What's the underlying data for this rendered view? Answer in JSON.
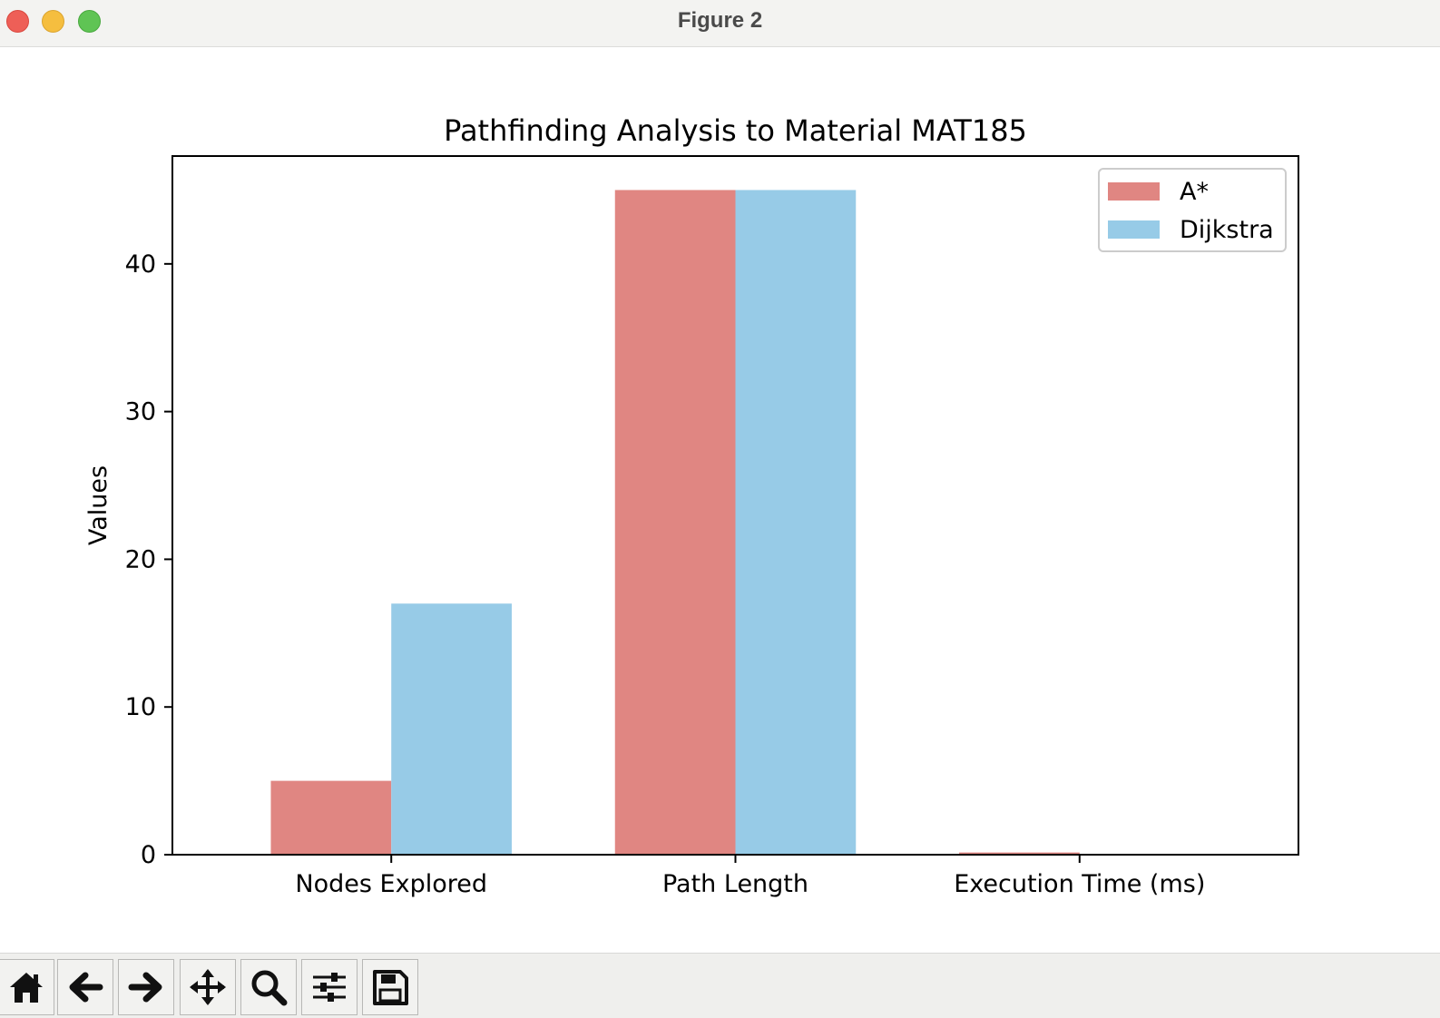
{
  "window": {
    "title": "Figure 2"
  },
  "toolbar": {
    "buttons": [
      {
        "name": "home-button",
        "icon": "home-icon"
      },
      {
        "name": "back-button",
        "icon": "arrow-left-icon"
      },
      {
        "name": "forward-button",
        "icon": "arrow-right-icon"
      },
      {
        "name": "pan-button",
        "icon": "move-icon"
      },
      {
        "name": "zoom-button",
        "icon": "search-icon"
      },
      {
        "name": "configure-subplots-button",
        "icon": "sliders-icon"
      },
      {
        "name": "save-button",
        "icon": "save-icon"
      }
    ]
  },
  "chart_data": {
    "type": "bar",
    "title": "Pathfinding Analysis to Material MAT185",
    "xlabel": "",
    "ylabel": "Values",
    "categories": [
      "Nodes Explored",
      "Path Length",
      "Execution Time (ms)"
    ],
    "series": [
      {
        "name": "A*",
        "values": [
          5,
          45,
          0.15
        ],
        "color": "#e08682"
      },
      {
        "name": "Dijkstra",
        "values": [
          17,
          45,
          0.05
        ],
        "color": "#97cbe7"
      }
    ],
    "ylim": [
      0,
      47.3
    ],
    "yticks": [
      "0",
      "10",
      "20",
      "30",
      "40"
    ],
    "ytick_values": [
      0,
      10,
      20,
      30,
      40
    ],
    "grid": false,
    "legend_position": "top-right"
  }
}
